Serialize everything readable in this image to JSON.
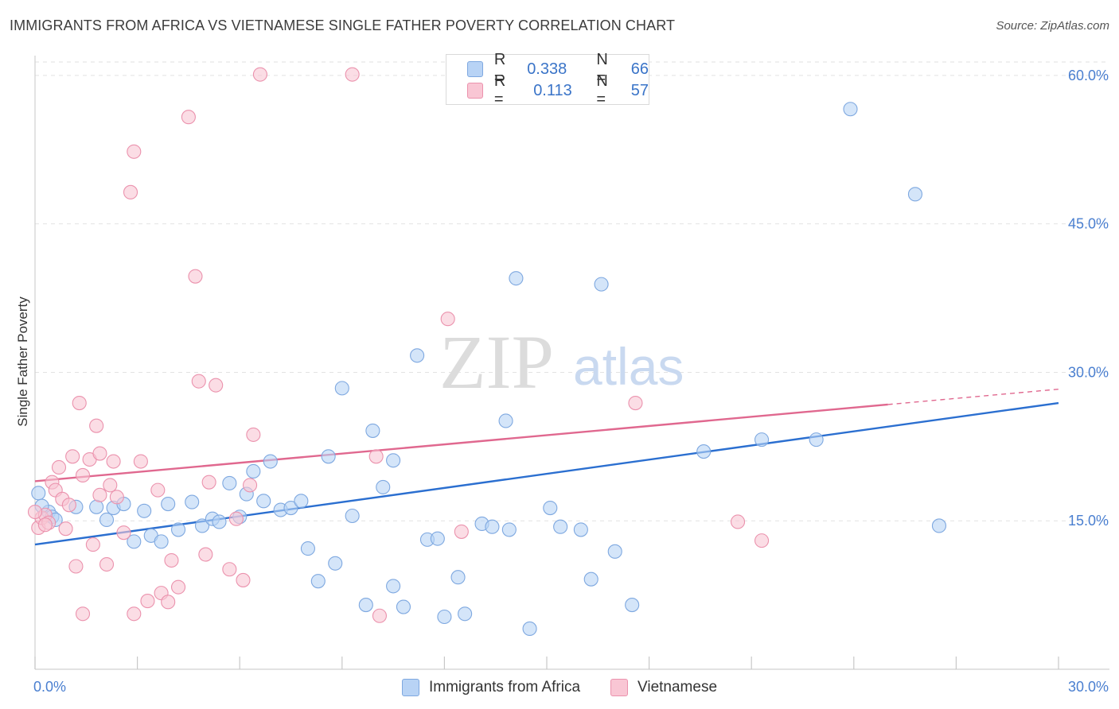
{
  "header": {
    "title": "IMMIGRANTS FROM AFRICA VS VIETNAMESE SINGLE FATHER POVERTY CORRELATION CHART",
    "source": "Source: ZipAtlas.com"
  },
  "watermark": {
    "zip": "ZIP",
    "atlas": "atlas"
  },
  "legend": {
    "r_label": "R =",
    "n_label": "N =",
    "series": [
      {
        "r": "0.338",
        "n": "66",
        "color": "#b8d3f5",
        "border": "#7ea8e0"
      },
      {
        "r": "0.113",
        "n": "57",
        "color": "#f9c6d4",
        "border": "#eb92ad"
      }
    ]
  },
  "bottom_legend": [
    {
      "label": "Immigrants from Africa",
      "color": "#b8d3f5",
      "border": "#7ea8e0"
    },
    {
      "label": "Vietnamese",
      "color": "#f9c6d4",
      "border": "#eb92ad"
    }
  ],
  "chart_data": {
    "type": "scatter",
    "xlabel": "",
    "ylabel": "Single Father Poverty",
    "xlim": [
      0,
      30
    ],
    "ylim": [
      0,
      62
    ],
    "x_tick_labels": [
      {
        "value": 0,
        "label": "0.0%"
      },
      {
        "value": 30,
        "label": "30.0%"
      }
    ],
    "y_tick_labels": [
      {
        "value": 15,
        "label": "15.0%"
      },
      {
        "value": 30,
        "label": "30.0%"
      },
      {
        "value": 45,
        "label": "45.0%"
      },
      {
        "value": 60,
        "label": "60.0%"
      }
    ],
    "grid": true,
    "series": [
      {
        "color": "#7ea8e0",
        "fill": "#b8d3f5",
        "trend_color": "#2b6fd0",
        "trend": {
          "x": [
            0,
            30
          ],
          "y": [
            12.6,
            26.9
          ],
          "dashed_from": null
        },
        "points": [
          [
            0.1,
            17.8
          ],
          [
            0.4,
            15.9
          ],
          [
            0.5,
            15.4
          ],
          [
            1.2,
            16.4
          ],
          [
            1.8,
            16.4
          ],
          [
            2.1,
            15.1
          ],
          [
            2.3,
            16.3
          ],
          [
            2.6,
            16.7
          ],
          [
            2.9,
            12.9
          ],
          [
            3.2,
            16.0
          ],
          [
            3.4,
            13.5
          ],
          [
            3.7,
            12.9
          ],
          [
            3.9,
            16.7
          ],
          [
            4.2,
            14.1
          ],
          [
            4.6,
            16.9
          ],
          [
            4.9,
            14.5
          ],
          [
            5.2,
            15.2
          ],
          [
            5.4,
            14.9
          ],
          [
            5.7,
            18.8
          ],
          [
            6.0,
            15.4
          ],
          [
            6.2,
            17.7
          ],
          [
            6.4,
            20.0
          ],
          [
            6.7,
            17.0
          ],
          [
            6.9,
            21.0
          ],
          [
            7.2,
            16.1
          ],
          [
            7.5,
            16.3
          ],
          [
            7.8,
            17.0
          ],
          [
            8.0,
            12.2
          ],
          [
            8.3,
            8.9
          ],
          [
            8.6,
            21.5
          ],
          [
            8.8,
            10.7
          ],
          [
            9.0,
            28.4
          ],
          [
            9.3,
            15.5
          ],
          [
            9.7,
            6.5
          ],
          [
            9.9,
            24.1
          ],
          [
            10.2,
            18.4
          ],
          [
            10.5,
            21.1
          ],
          [
            10.5,
            8.4
          ],
          [
            10.8,
            6.3
          ],
          [
            11.2,
            31.7
          ],
          [
            11.5,
            13.1
          ],
          [
            11.8,
            13.2
          ],
          [
            12.0,
            5.3
          ],
          [
            12.4,
            9.3
          ],
          [
            12.6,
            5.6
          ],
          [
            13.1,
            14.7
          ],
          [
            13.4,
            14.4
          ],
          [
            13.8,
            25.1
          ],
          [
            13.9,
            14.1
          ],
          [
            14.1,
            39.5
          ],
          [
            14.5,
            4.1
          ],
          [
            15.1,
            16.3
          ],
          [
            15.4,
            14.4
          ],
          [
            16.0,
            14.1
          ],
          [
            16.3,
            9.1
          ],
          [
            16.6,
            38.9
          ],
          [
            17.0,
            11.9
          ],
          [
            17.5,
            6.5
          ],
          [
            19.6,
            22.0
          ],
          [
            21.3,
            23.2
          ],
          [
            22.9,
            23.2
          ],
          [
            23.9,
            56.6
          ],
          [
            25.8,
            48.0
          ],
          [
            26.5,
            14.5
          ],
          [
            0.2,
            16.5
          ],
          [
            0.6,
            15.1
          ]
        ]
      },
      {
        "color": "#eb92ad",
        "fill": "#f9c6d4",
        "trend_color": "#e0688f",
        "trend": {
          "x": [
            0,
            30
          ],
          "y": [
            19.0,
            28.3
          ],
          "dashed_from": 25.0
        },
        "points": [
          [
            0.1,
            14.3
          ],
          [
            0.2,
            15.3
          ],
          [
            0.3,
            15.6
          ],
          [
            0.4,
            14.8
          ],
          [
            0.5,
            18.9
          ],
          [
            0.6,
            18.1
          ],
          [
            0.7,
            20.4
          ],
          [
            0.8,
            17.2
          ],
          [
            0.9,
            14.2
          ],
          [
            1.0,
            16.6
          ],
          [
            1.1,
            21.5
          ],
          [
            1.2,
            10.4
          ],
          [
            1.3,
            26.9
          ],
          [
            1.4,
            19.6
          ],
          [
            1.4,
            5.6
          ],
          [
            1.6,
            21.2
          ],
          [
            1.7,
            12.6
          ],
          [
            1.8,
            24.6
          ],
          [
            1.9,
            17.6
          ],
          [
            1.9,
            21.8
          ],
          [
            2.1,
            10.6
          ],
          [
            2.2,
            18.6
          ],
          [
            2.3,
            21.0
          ],
          [
            2.4,
            17.4
          ],
          [
            2.6,
            13.8
          ],
          [
            2.8,
            48.2
          ],
          [
            2.9,
            52.3
          ],
          [
            2.9,
            5.6
          ],
          [
            3.1,
            21.0
          ],
          [
            3.3,
            6.9
          ],
          [
            3.6,
            18.1
          ],
          [
            3.7,
            7.7
          ],
          [
            3.9,
            6.8
          ],
          [
            4.0,
            11.0
          ],
          [
            4.2,
            8.3
          ],
          [
            4.5,
            55.8
          ],
          [
            4.7,
            39.7
          ],
          [
            4.8,
            29.1
          ],
          [
            5.0,
            11.6
          ],
          [
            5.1,
            18.9
          ],
          [
            5.3,
            28.7
          ],
          [
            5.7,
            10.1
          ],
          [
            5.9,
            15.2
          ],
          [
            6.1,
            9.0
          ],
          [
            6.3,
            18.6
          ],
          [
            6.4,
            23.7
          ],
          [
            6.6,
            60.1
          ],
          [
            9.3,
            60.1
          ],
          [
            10.0,
            21.5
          ],
          [
            10.1,
            5.4
          ],
          [
            12.1,
            35.4
          ],
          [
            12.5,
            13.9
          ],
          [
            17.6,
            26.9
          ],
          [
            20.6,
            14.9
          ],
          [
            21.3,
            13.0
          ],
          [
            0.0,
            15.9
          ],
          [
            0.3,
            14.6
          ]
        ]
      }
    ]
  }
}
